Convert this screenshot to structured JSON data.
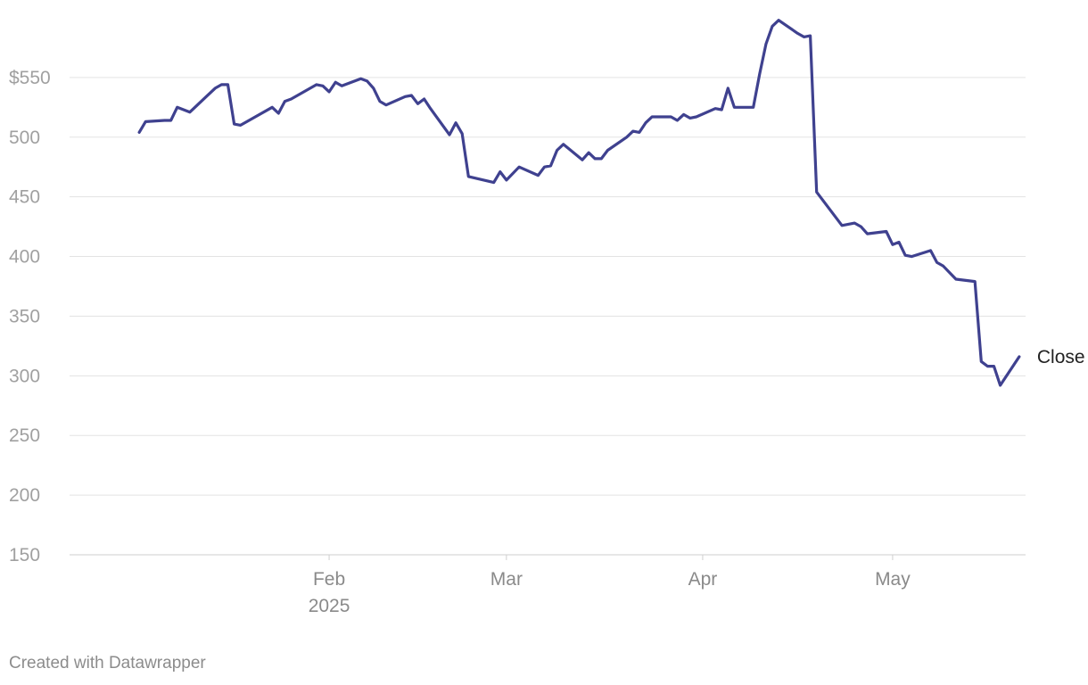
{
  "chart_data": {
    "type": "line",
    "title": "",
    "xlabel": "",
    "ylabel": "",
    "ylim": [
      150,
      600
    ],
    "y_ticks": [
      150,
      200,
      250,
      300,
      350,
      400,
      450,
      500,
      550
    ],
    "y_tick_prefix_top": "$",
    "x_ticks": [
      {
        "date": "2025-02-01",
        "label": "Feb",
        "sublabel": "2025"
      },
      {
        "date": "2025-03-01",
        "label": "Mar",
        "sublabel": ""
      },
      {
        "date": "2025-04-01",
        "label": "Apr",
        "sublabel": ""
      },
      {
        "date": "2025-05-01",
        "label": "May",
        "sublabel": ""
      }
    ],
    "grid": true,
    "colors": {
      "line": "#3f418f",
      "grid": "#e3e3e3",
      "tick_text": "#a0a0a0"
    },
    "series": [
      {
        "name": "Close",
        "points": [
          [
            "2025-01-02",
            504
          ],
          [
            "2025-01-03",
            513
          ],
          [
            "2025-01-06",
            514
          ],
          [
            "2025-01-07",
            514
          ],
          [
            "2025-01-08",
            525
          ],
          [
            "2025-01-10",
            521
          ],
          [
            "2025-01-13",
            536
          ],
          [
            "2025-01-14",
            541
          ],
          [
            "2025-01-15",
            544
          ],
          [
            "2025-01-16",
            544
          ],
          [
            "2025-01-17",
            511
          ],
          [
            "2025-01-18",
            510
          ],
          [
            "2025-01-23",
            525
          ],
          [
            "2025-01-24",
            520
          ],
          [
            "2025-01-25",
            530
          ],
          [
            "2025-01-26",
            532
          ],
          [
            "2025-01-30",
            544
          ],
          [
            "2025-01-31",
            543
          ],
          [
            "2025-02-01",
            538
          ],
          [
            "2025-02-02",
            546
          ],
          [
            "2025-02-03",
            543
          ],
          [
            "2025-02-06",
            549
          ],
          [
            "2025-02-07",
            547
          ],
          [
            "2025-02-08",
            541
          ],
          [
            "2025-02-09",
            530
          ],
          [
            "2025-02-10",
            527
          ],
          [
            "2025-02-13",
            534
          ],
          [
            "2025-02-14",
            535
          ],
          [
            "2025-02-15",
            528
          ],
          [
            "2025-02-16",
            532
          ],
          [
            "2025-02-17",
            524
          ],
          [
            "2025-02-20",
            502
          ],
          [
            "2025-02-21",
            512
          ],
          [
            "2025-02-22",
            503
          ],
          [
            "2025-02-23",
            467
          ],
          [
            "2025-02-27",
            462
          ],
          [
            "2025-02-28",
            471
          ],
          [
            "2025-03-01",
            464
          ],
          [
            "2025-03-03",
            475
          ],
          [
            "2025-03-06",
            468
          ],
          [
            "2025-03-07",
            475
          ],
          [
            "2025-03-08",
            476
          ],
          [
            "2025-03-09",
            489
          ],
          [
            "2025-03-10",
            494
          ],
          [
            "2025-03-13",
            481
          ],
          [
            "2025-03-14",
            487
          ],
          [
            "2025-03-15",
            482
          ],
          [
            "2025-03-16",
            482
          ],
          [
            "2025-03-17",
            489
          ],
          [
            "2025-03-20",
            500
          ],
          [
            "2025-03-21",
            505
          ],
          [
            "2025-03-22",
            504
          ],
          [
            "2025-03-23",
            512
          ],
          [
            "2025-03-24",
            517
          ],
          [
            "2025-03-27",
            517
          ],
          [
            "2025-03-28",
            514
          ],
          [
            "2025-03-29",
            519
          ],
          [
            "2025-03-30",
            516
          ],
          [
            "2025-03-31",
            517
          ],
          [
            "2025-04-03",
            524
          ],
          [
            "2025-04-04",
            523
          ],
          [
            "2025-04-05",
            541
          ],
          [
            "2025-04-06",
            525
          ],
          [
            "2025-04-09",
            525
          ],
          [
            "2025-04-10",
            553
          ],
          [
            "2025-04-11",
            578
          ],
          [
            "2025-04-12",
            593
          ],
          [
            "2025-04-13",
            598
          ],
          [
            "2025-04-16",
            587
          ],
          [
            "2025-04-17",
            584
          ],
          [
            "2025-04-18",
            585
          ],
          [
            "2025-04-19",
            454
          ],
          [
            "2025-04-23",
            426
          ],
          [
            "2025-04-25",
            428
          ],
          [
            "2025-04-26",
            425
          ],
          [
            "2025-04-27",
            419
          ],
          [
            "2025-04-30",
            421
          ],
          [
            "2025-05-01",
            410
          ],
          [
            "2025-05-02",
            412
          ],
          [
            "2025-05-03",
            401
          ],
          [
            "2025-05-04",
            400
          ],
          [
            "2025-05-07",
            405
          ],
          [
            "2025-05-08",
            395
          ],
          [
            "2025-05-09",
            392
          ],
          [
            "2025-05-11",
            381
          ],
          [
            "2025-05-14",
            379
          ],
          [
            "2025-05-15",
            312
          ],
          [
            "2025-05-16",
            308
          ],
          [
            "2025-05-17",
            308
          ],
          [
            "2025-05-18",
            292
          ],
          [
            "2025-05-21",
            316
          ]
        ]
      }
    ]
  },
  "credit": "Created with Datawrapper"
}
